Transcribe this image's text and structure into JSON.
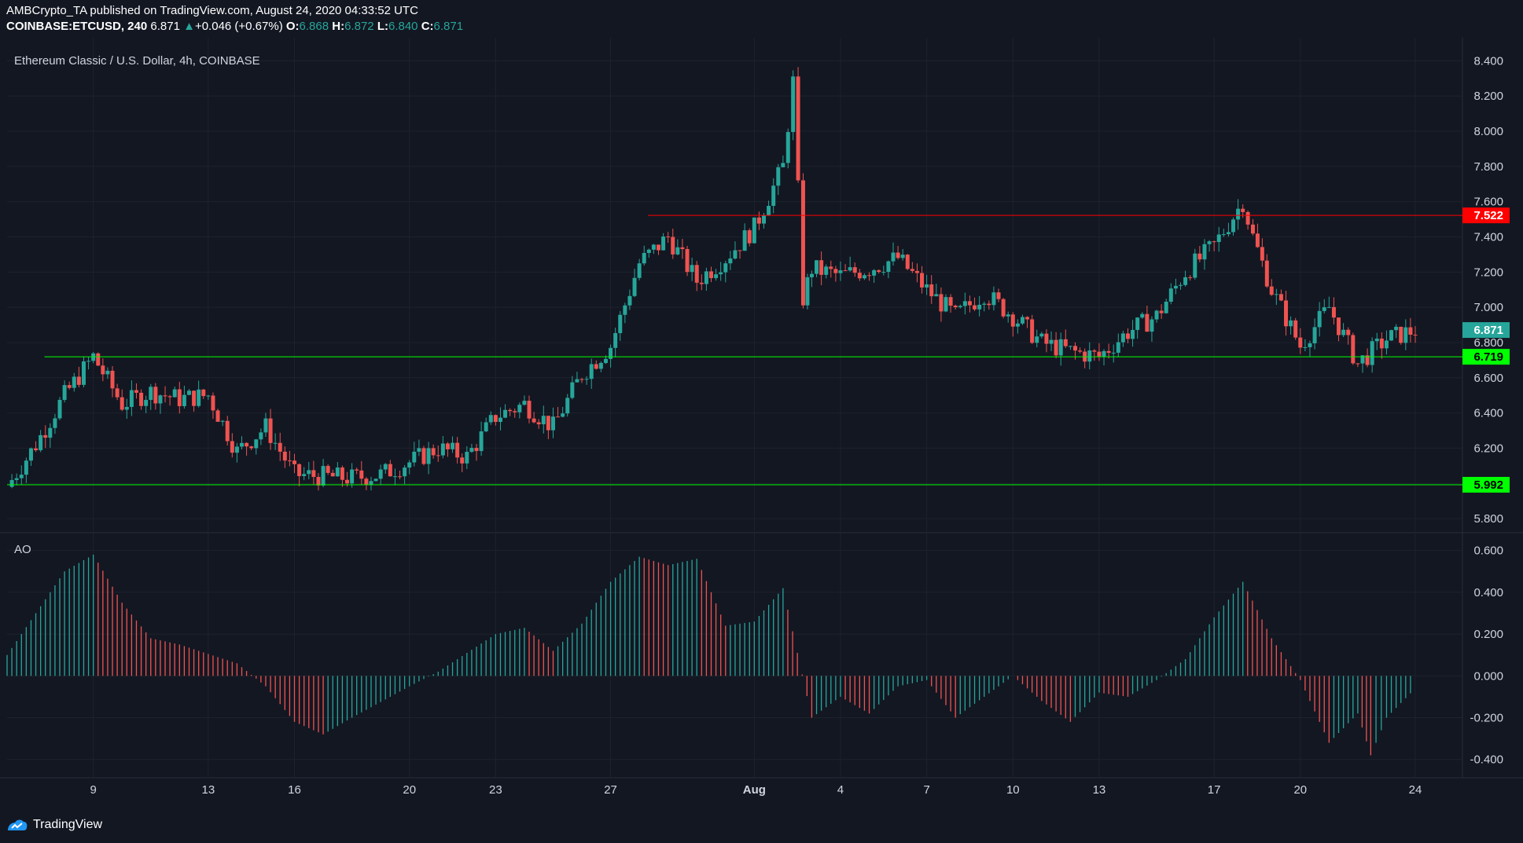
{
  "header": {
    "published": "AMBCrypto_TA published on TradingView.com, August 24, 2020 04:33:52 UTC",
    "symbol": "COINBASE:ETCUSD, 240",
    "last": "6.871",
    "arrow": "▲",
    "change": "+0.046 (+0.67%)",
    "o_label": "O:",
    "o_val": "6.868",
    "h_label": "H:",
    "h_val": "6.872",
    "l_label": "L:",
    "l_val": "6.840",
    "c_label": "C:",
    "c_val": "6.871"
  },
  "footer": {
    "brand": "TradingView",
    "logo_icon": "tradingview-logo-icon"
  },
  "colors": {
    "background": "#131722",
    "up": "#26a69a",
    "down": "#ef5350",
    "ao_up": "#26a69a",
    "ao_down": "#ef5350",
    "resistance": "#ff0000",
    "support": "#00ff00",
    "grid": "#1e222d",
    "axis_text": "#d1d4dc"
  },
  "chart_data": {
    "type": "candlestick",
    "title": "Ethereum Classic / U.S. Dollar, 4h, COINBASE",
    "x_ticks": [
      "9",
      "13",
      "16",
      "20",
      "23",
      "27",
      "Aug",
      "4",
      "7",
      "10",
      "13",
      "17",
      "20",
      "24"
    ],
    "price_axis": {
      "ticks": [
        "8.400",
        "8.200",
        "8.000",
        "7.800",
        "7.600",
        "7.400",
        "7.200",
        "7.000",
        "6.800",
        "6.600",
        "6.400",
        "6.200",
        "6.000",
        "5.800"
      ],
      "range": [
        5.72,
        8.5
      ]
    },
    "price_series": [
      {
        "date": "Jul 6",
        "close": 5.98
      },
      {
        "date": "Jul 7",
        "close": 6.22
      },
      {
        "date": "Jul 8",
        "close": 6.5
      },
      {
        "date": "Jul 9",
        "close": 6.72
      },
      {
        "date": "Jul 10",
        "close": 6.45
      },
      {
        "date": "Jul 11",
        "close": 6.52
      },
      {
        "date": "Jul 12",
        "close": 6.48
      },
      {
        "date": "Jul 13",
        "close": 6.5
      },
      {
        "date": "Jul 14",
        "close": 6.18
      },
      {
        "date": "Jul 15",
        "close": 6.32
      },
      {
        "date": "Jul 16",
        "close": 6.05
      },
      {
        "date": "Jul 17",
        "close": 6.04
      },
      {
        "date": "Jul 18",
        "close": 6.03
      },
      {
        "date": "Jul 19",
        "close": 6.05
      },
      {
        "date": "Jul 20",
        "close": 6.12
      },
      {
        "date": "Jul 21",
        "close": 6.2
      },
      {
        "date": "Jul 22",
        "close": 6.15
      },
      {
        "date": "Jul 23",
        "close": 6.38
      },
      {
        "date": "Jul 24",
        "close": 6.45
      },
      {
        "date": "Jul 25",
        "close": 6.32
      },
      {
        "date": "Jul 26",
        "close": 6.62
      },
      {
        "date": "Jul 27",
        "close": 6.78
      },
      {
        "date": "Jul 28",
        "close": 7.25
      },
      {
        "date": "Jul 29",
        "close": 7.4
      },
      {
        "date": "Jul 30",
        "close": 7.15
      },
      {
        "date": "Jul 31",
        "close": 7.28
      },
      {
        "date": "Aug 1",
        "close": 7.45
      },
      {
        "date": "Aug 2",
        "close": 7.8
      },
      {
        "date": "Aug 2",
        "close": 8.28
      },
      {
        "date": "Aug 2",
        "close": 7.05
      },
      {
        "date": "Aug 3",
        "close": 7.22
      },
      {
        "date": "Aug 4",
        "close": 7.18
      },
      {
        "date": "Aug 5",
        "close": 7.22
      },
      {
        "date": "Aug 6",
        "close": 7.28
      },
      {
        "date": "Aug 7",
        "close": 7.1
      },
      {
        "date": "Aug 8",
        "close": 6.95
      },
      {
        "date": "Aug 9",
        "close": 7.08
      },
      {
        "date": "Aug 10",
        "close": 6.95
      },
      {
        "date": "Aug 11",
        "close": 6.8
      },
      {
        "date": "Aug 12",
        "close": 6.75
      },
      {
        "date": "Aug 13",
        "close": 6.72
      },
      {
        "date": "Aug 14",
        "close": 6.86
      },
      {
        "date": "Aug 15",
        "close": 6.95
      },
      {
        "date": "Aug 16",
        "close": 7.2
      },
      {
        "date": "Aug 17",
        "close": 7.35
      },
      {
        "date": "Aug 18",
        "close": 7.6
      },
      {
        "date": "Aug 18",
        "close": 7.4
      },
      {
        "date": "Aug 19",
        "close": 7.1
      },
      {
        "date": "Aug 20",
        "close": 6.78
      },
      {
        "date": "Aug 21",
        "close": 7.0
      },
      {
        "date": "Aug 22",
        "close": 6.68
      },
      {
        "date": "Aug 23",
        "close": 6.82
      },
      {
        "date": "Aug 24",
        "close": 6.871
      }
    ],
    "levels": [
      {
        "name": "resistance",
        "value": 7.522,
        "label": "7.522",
        "color": "#ff0000"
      },
      {
        "name": "support",
        "value": 6.719,
        "label": "6.719",
        "color": "#00ff00"
      },
      {
        "name": "support",
        "value": 5.992,
        "label": "5.992",
        "color": "#00ff00"
      }
    ],
    "last_price": {
      "value": 6.871,
      "label": "6.871",
      "color": "#26a69a"
    },
    "ao": {
      "label": "AO",
      "ticks": [
        "0.600",
        "0.400",
        "0.200",
        "0.000",
        "-0.200",
        "-0.400"
      ],
      "range": [
        -0.48,
        0.64
      ],
      "series": [
        {
          "date": "Jul 6",
          "value": 0.1
        },
        {
          "date": "Jul 8",
          "value": 0.5
        },
        {
          "date": "Jul 9",
          "value": 0.58
        },
        {
          "date": "Jul 10",
          "value": 0.35
        },
        {
          "date": "Jul 11",
          "value": 0.18
        },
        {
          "date": "Jul 12",
          "value": 0.15
        },
        {
          "date": "Jul 14",
          "value": 0.06
        },
        {
          "date": "Jul 15",
          "value": -0.05
        },
        {
          "date": "Jul 16",
          "value": -0.22
        },
        {
          "date": "Jul 17",
          "value": -0.28
        },
        {
          "date": "Jul 18",
          "value": -0.2
        },
        {
          "date": "Jul 20",
          "value": -0.05
        },
        {
          "date": "Jul 21",
          "value": 0.02
        },
        {
          "date": "Jul 23",
          "value": 0.2
        },
        {
          "date": "Jul 24",
          "value": 0.23
        },
        {
          "date": "Jul 25",
          "value": 0.12
        },
        {
          "date": "Jul 26",
          "value": 0.25
        },
        {
          "date": "Jul 27",
          "value": 0.45
        },
        {
          "date": "Jul 28",
          "value": 0.57
        },
        {
          "date": "Jul 29",
          "value": 0.53
        },
        {
          "date": "Jul 30",
          "value": 0.56
        },
        {
          "date": "Jul 31",
          "value": 0.24
        },
        {
          "date": "Aug 1",
          "value": 0.26
        },
        {
          "date": "Aug 2",
          "value": 0.42
        },
        {
          "date": "Aug 3",
          "value": -0.2
        },
        {
          "date": "Aug 4",
          "value": -0.1
        },
        {
          "date": "Aug 5",
          "value": -0.18
        },
        {
          "date": "Aug 6",
          "value": -0.05
        },
        {
          "date": "Aug 7",
          "value": -0.02
        },
        {
          "date": "Aug 8",
          "value": -0.2
        },
        {
          "date": "Aug 9",
          "value": -0.1
        },
        {
          "date": "Aug 10",
          "value": 0.0
        },
        {
          "date": "Aug 11",
          "value": -0.12
        },
        {
          "date": "Aug 12",
          "value": -0.22
        },
        {
          "date": "Aug 13",
          "value": -0.08
        },
        {
          "date": "Aug 14",
          "value": -0.1
        },
        {
          "date": "Aug 15",
          "value": -0.02
        },
        {
          "date": "Aug 16",
          "value": 0.08
        },
        {
          "date": "Aug 17",
          "value": 0.28
        },
        {
          "date": "Aug 18",
          "value": 0.45
        },
        {
          "date": "Aug 19",
          "value": 0.18
        },
        {
          "date": "Aug 20",
          "value": -0.02
        },
        {
          "date": "Aug 21",
          "value": -0.32
        },
        {
          "date": "Aug 22",
          "value": -0.18
        },
        {
          "date": "Aug 22",
          "value": -0.38
        },
        {
          "date": "Aug 23",
          "value": -0.2
        },
        {
          "date": "Aug 24",
          "value": -0.06
        }
      ]
    }
  }
}
